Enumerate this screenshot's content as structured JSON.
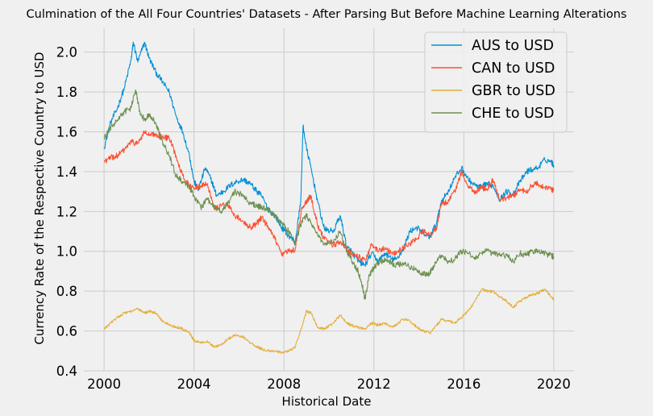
{
  "chart_data": {
    "type": "line",
    "title": "Culmination of the All Four Countries' Datasets - After Parsing But Before Machine Learning Alterations",
    "xlabel": "Historical Date",
    "ylabel": "Currency Rate of the Respective Country to USD",
    "xlim": [
      1999.1,
      2020.9
    ],
    "ylim": [
      0.4,
      2.12
    ],
    "x_ticks": [
      2000,
      2004,
      2008,
      2012,
      2016,
      2020
    ],
    "y_ticks": [
      0.4,
      0.6,
      0.8,
      1.0,
      1.2,
      1.4,
      1.6,
      1.8,
      2.0
    ],
    "grid": true,
    "legend_position": "top-right",
    "series": [
      {
        "name": "AUS to USD",
        "color": "#008fd5",
        "points": [
          [
            2000.0,
            1.52
          ],
          [
            2000.3,
            1.65
          ],
          [
            2000.6,
            1.72
          ],
          [
            2000.9,
            1.82
          ],
          [
            2001.2,
            1.96
          ],
          [
            2001.3,
            2.05
          ],
          [
            2001.5,
            1.95
          ],
          [
            2001.8,
            2.05
          ],
          [
            2002.0,
            1.97
          ],
          [
            2002.3,
            1.9
          ],
          [
            2002.6,
            1.85
          ],
          [
            2002.9,
            1.8
          ],
          [
            2003.2,
            1.68
          ],
          [
            2003.5,
            1.6
          ],
          [
            2003.8,
            1.48
          ],
          [
            2004.0,
            1.35
          ],
          [
            2004.2,
            1.31
          ],
          [
            2004.5,
            1.42
          ],
          [
            2004.8,
            1.35
          ],
          [
            2005.0,
            1.28
          ],
          [
            2005.3,
            1.3
          ],
          [
            2005.6,
            1.33
          ],
          [
            2005.9,
            1.35
          ],
          [
            2006.2,
            1.36
          ],
          [
            2006.5,
            1.34
          ],
          [
            2006.8,
            1.3
          ],
          [
            2007.0,
            1.28
          ],
          [
            2007.3,
            1.21
          ],
          [
            2007.6,
            1.18
          ],
          [
            2007.9,
            1.12
          ],
          [
            2008.2,
            1.08
          ],
          [
            2008.5,
            1.05
          ],
          [
            2008.75,
            1.25
          ],
          [
            2008.85,
            1.63
          ],
          [
            2009.0,
            1.52
          ],
          [
            2009.2,
            1.42
          ],
          [
            2009.5,
            1.25
          ],
          [
            2009.8,
            1.11
          ],
          [
            2010.2,
            1.1
          ],
          [
            2010.5,
            1.18
          ],
          [
            2010.8,
            1.02
          ],
          [
            2011.0,
            1.0
          ],
          [
            2011.3,
            0.95
          ],
          [
            2011.6,
            0.93
          ],
          [
            2011.9,
            0.99
          ],
          [
            2012.2,
            0.95
          ],
          [
            2012.5,
            0.99
          ],
          [
            2012.8,
            0.96
          ],
          [
            2013.0,
            0.96
          ],
          [
            2013.3,
            1.01
          ],
          [
            2013.6,
            1.1
          ],
          [
            2013.9,
            1.12
          ],
          [
            2014.2,
            1.09
          ],
          [
            2014.5,
            1.07
          ],
          [
            2014.8,
            1.15
          ],
          [
            2015.0,
            1.25
          ],
          [
            2015.3,
            1.3
          ],
          [
            2015.6,
            1.37
          ],
          [
            2015.9,
            1.42
          ],
          [
            2016.2,
            1.36
          ],
          [
            2016.5,
            1.33
          ],
          [
            2016.8,
            1.32
          ],
          [
            2017.0,
            1.34
          ],
          [
            2017.3,
            1.33
          ],
          [
            2017.6,
            1.26
          ],
          [
            2017.9,
            1.3
          ],
          [
            2018.2,
            1.29
          ],
          [
            2018.5,
            1.35
          ],
          [
            2018.8,
            1.4
          ],
          [
            2019.0,
            1.41
          ],
          [
            2019.3,
            1.42
          ],
          [
            2019.6,
            1.46
          ],
          [
            2019.9,
            1.45
          ],
          [
            2020.0,
            1.43
          ]
        ]
      },
      {
        "name": "CAN to USD",
        "color": "#fc4f30",
        "points": [
          [
            2000.0,
            1.45
          ],
          [
            2000.3,
            1.47
          ],
          [
            2000.6,
            1.48
          ],
          [
            2000.9,
            1.51
          ],
          [
            2001.2,
            1.55
          ],
          [
            2001.5,
            1.54
          ],
          [
            2001.8,
            1.6
          ],
          [
            2002.0,
            1.58
          ],
          [
            2002.3,
            1.59
          ],
          [
            2002.6,
            1.57
          ],
          [
            2002.9,
            1.57
          ],
          [
            2003.2,
            1.48
          ],
          [
            2003.5,
            1.38
          ],
          [
            2003.8,
            1.33
          ],
          [
            2004.0,
            1.31
          ],
          [
            2004.3,
            1.33
          ],
          [
            2004.6,
            1.34
          ],
          [
            2004.9,
            1.21
          ],
          [
            2005.2,
            1.23
          ],
          [
            2005.5,
            1.24
          ],
          [
            2005.8,
            1.18
          ],
          [
            2006.2,
            1.15
          ],
          [
            2006.5,
            1.12
          ],
          [
            2006.8,
            1.14
          ],
          [
            2007.0,
            1.17
          ],
          [
            2007.3,
            1.12
          ],
          [
            2007.6,
            1.06
          ],
          [
            2007.9,
            0.98
          ],
          [
            2008.2,
            1.0
          ],
          [
            2008.5,
            1.01
          ],
          [
            2008.8,
            1.22
          ],
          [
            2009.0,
            1.25
          ],
          [
            2009.2,
            1.28
          ],
          [
            2009.5,
            1.13
          ],
          [
            2009.8,
            1.06
          ],
          [
            2010.2,
            1.03
          ],
          [
            2010.5,
            1.05
          ],
          [
            2010.8,
            1.01
          ],
          [
            2011.0,
            0.99
          ],
          [
            2011.3,
            0.97
          ],
          [
            2011.6,
            0.96
          ],
          [
            2011.9,
            1.03
          ],
          [
            2012.2,
            1.0
          ],
          [
            2012.5,
            1.02
          ],
          [
            2012.8,
            0.99
          ],
          [
            2013.0,
            0.99
          ],
          [
            2013.3,
            1.02
          ],
          [
            2013.6,
            1.04
          ],
          [
            2013.9,
            1.06
          ],
          [
            2014.2,
            1.1
          ],
          [
            2014.5,
            1.08
          ],
          [
            2014.8,
            1.12
          ],
          [
            2015.0,
            1.24
          ],
          [
            2015.3,
            1.25
          ],
          [
            2015.6,
            1.3
          ],
          [
            2015.9,
            1.4
          ],
          [
            2016.2,
            1.32
          ],
          [
            2016.5,
            1.3
          ],
          [
            2016.8,
            1.32
          ],
          [
            2017.0,
            1.31
          ],
          [
            2017.3,
            1.36
          ],
          [
            2017.6,
            1.25
          ],
          [
            2017.9,
            1.27
          ],
          [
            2018.2,
            1.28
          ],
          [
            2018.5,
            1.31
          ],
          [
            2018.8,
            1.3
          ],
          [
            2019.0,
            1.33
          ],
          [
            2019.3,
            1.34
          ],
          [
            2019.6,
            1.32
          ],
          [
            2019.9,
            1.31
          ],
          [
            2020.0,
            1.31
          ]
        ]
      },
      {
        "name": "GBR to USD",
        "color": "#e5ae38",
        "points": [
          [
            2000.0,
            0.61
          ],
          [
            2000.3,
            0.64
          ],
          [
            2000.6,
            0.67
          ],
          [
            2000.9,
            0.69
          ],
          [
            2001.2,
            0.7
          ],
          [
            2001.5,
            0.71
          ],
          [
            2001.8,
            0.69
          ],
          [
            2002.0,
            0.7
          ],
          [
            2002.3,
            0.69
          ],
          [
            2002.6,
            0.65
          ],
          [
            2002.9,
            0.63
          ],
          [
            2003.2,
            0.62
          ],
          [
            2003.5,
            0.61
          ],
          [
            2003.8,
            0.59
          ],
          [
            2004.0,
            0.55
          ],
          [
            2004.3,
            0.54
          ],
          [
            2004.6,
            0.55
          ],
          [
            2004.9,
            0.52
          ],
          [
            2005.2,
            0.53
          ],
          [
            2005.5,
            0.56
          ],
          [
            2005.8,
            0.58
          ],
          [
            2006.2,
            0.57
          ],
          [
            2006.5,
            0.54
          ],
          [
            2006.8,
            0.52
          ],
          [
            2007.0,
            0.51
          ],
          [
            2007.3,
            0.5
          ],
          [
            2007.6,
            0.5
          ],
          [
            2007.9,
            0.49
          ],
          [
            2008.2,
            0.5
          ],
          [
            2008.5,
            0.52
          ],
          [
            2008.8,
            0.62
          ],
          [
            2009.0,
            0.7
          ],
          [
            2009.2,
            0.69
          ],
          [
            2009.5,
            0.62
          ],
          [
            2009.8,
            0.61
          ],
          [
            2010.2,
            0.64
          ],
          [
            2010.5,
            0.68
          ],
          [
            2010.8,
            0.64
          ],
          [
            2011.0,
            0.63
          ],
          [
            2011.3,
            0.62
          ],
          [
            2011.6,
            0.61
          ],
          [
            2011.9,
            0.64
          ],
          [
            2012.2,
            0.63
          ],
          [
            2012.5,
            0.64
          ],
          [
            2012.8,
            0.62
          ],
          [
            2013.0,
            0.63
          ],
          [
            2013.3,
            0.66
          ],
          [
            2013.6,
            0.65
          ],
          [
            2013.9,
            0.62
          ],
          [
            2014.2,
            0.6
          ],
          [
            2014.5,
            0.59
          ],
          [
            2014.8,
            0.63
          ],
          [
            2015.0,
            0.66
          ],
          [
            2015.3,
            0.65
          ],
          [
            2015.6,
            0.64
          ],
          [
            2015.9,
            0.67
          ],
          [
            2016.2,
            0.7
          ],
          [
            2016.5,
            0.75
          ],
          [
            2016.8,
            0.81
          ],
          [
            2017.0,
            0.8
          ],
          [
            2017.3,
            0.8
          ],
          [
            2017.6,
            0.77
          ],
          [
            2017.9,
            0.75
          ],
          [
            2018.2,
            0.72
          ],
          [
            2018.5,
            0.75
          ],
          [
            2018.8,
            0.77
          ],
          [
            2019.0,
            0.78
          ],
          [
            2019.3,
            0.79
          ],
          [
            2019.6,
            0.81
          ],
          [
            2019.9,
            0.77
          ],
          [
            2020.0,
            0.76
          ]
        ]
      },
      {
        "name": "CHE to USD",
        "color": "#6d904f",
        "points": [
          [
            2000.0,
            1.57
          ],
          [
            2000.3,
            1.62
          ],
          [
            2000.6,
            1.66
          ],
          [
            2000.9,
            1.7
          ],
          [
            2001.2,
            1.72
          ],
          [
            2001.4,
            1.81
          ],
          [
            2001.6,
            1.7
          ],
          [
            2001.8,
            1.66
          ],
          [
            2002.0,
            1.69
          ],
          [
            2002.3,
            1.64
          ],
          [
            2002.6,
            1.55
          ],
          [
            2002.9,
            1.48
          ],
          [
            2003.2,
            1.38
          ],
          [
            2003.5,
            1.35
          ],
          [
            2003.8,
            1.32
          ],
          [
            2004.0,
            1.28
          ],
          [
            2004.3,
            1.22
          ],
          [
            2004.6,
            1.26
          ],
          [
            2004.9,
            1.22
          ],
          [
            2005.2,
            1.2
          ],
          [
            2005.5,
            1.24
          ],
          [
            2005.8,
            1.3
          ],
          [
            2006.2,
            1.28
          ],
          [
            2006.5,
            1.24
          ],
          [
            2006.8,
            1.23
          ],
          [
            2007.0,
            1.22
          ],
          [
            2007.3,
            1.21
          ],
          [
            2007.6,
            1.18
          ],
          [
            2007.9,
            1.14
          ],
          [
            2008.2,
            1.1
          ],
          [
            2008.5,
            1.04
          ],
          [
            2008.8,
            1.15
          ],
          [
            2009.0,
            1.18
          ],
          [
            2009.2,
            1.14
          ],
          [
            2009.5,
            1.08
          ],
          [
            2009.8,
            1.04
          ],
          [
            2010.2,
            1.05
          ],
          [
            2010.5,
            1.1
          ],
          [
            2010.8,
            1.0
          ],
          [
            2011.0,
            0.96
          ],
          [
            2011.3,
            0.9
          ],
          [
            2011.5,
            0.82
          ],
          [
            2011.6,
            0.76
          ],
          [
            2011.8,
            0.88
          ],
          [
            2012.0,
            0.92
          ],
          [
            2012.3,
            0.95
          ],
          [
            2012.6,
            0.96
          ],
          [
            2012.9,
            0.93
          ],
          [
            2013.2,
            0.94
          ],
          [
            2013.5,
            0.93
          ],
          [
            2013.8,
            0.91
          ],
          [
            2014.1,
            0.89
          ],
          [
            2014.4,
            0.88
          ],
          [
            2014.7,
            0.93
          ],
          [
            2015.0,
            0.98
          ],
          [
            2015.3,
            0.95
          ],
          [
            2015.6,
            0.96
          ],
          [
            2015.9,
            1.0
          ],
          [
            2016.2,
            0.99
          ],
          [
            2016.5,
            0.97
          ],
          [
            2016.8,
            0.99
          ],
          [
            2017.0,
            1.0
          ],
          [
            2017.3,
            0.99
          ],
          [
            2017.6,
            0.98
          ],
          [
            2017.9,
            0.98
          ],
          [
            2018.2,
            0.95
          ],
          [
            2018.5,
            0.99
          ],
          [
            2018.8,
            0.98
          ],
          [
            2019.0,
            1.0
          ],
          [
            2019.3,
            1.0
          ],
          [
            2019.6,
            0.99
          ],
          [
            2019.9,
            0.98
          ],
          [
            2020.0,
            0.97
          ]
        ]
      }
    ]
  }
}
